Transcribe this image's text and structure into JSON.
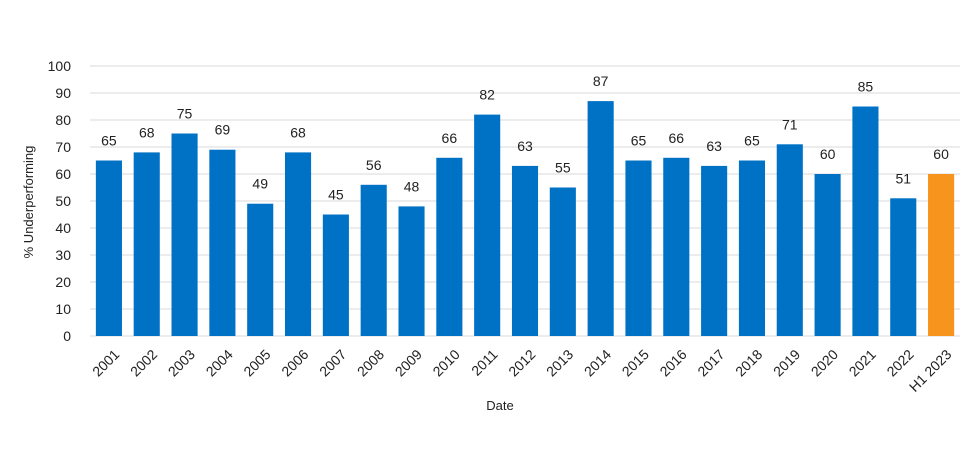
{
  "chart_data": {
    "type": "bar",
    "categories": [
      "2001",
      "2002",
      "2003",
      "2004",
      "2005",
      "2006",
      "2007",
      "2008",
      "2009",
      "2010",
      "2011",
      "2012",
      "2013",
      "2014",
      "2015",
      "2016",
      "2017",
      "2018",
      "2019",
      "2020",
      "2021",
      "2022",
      "H1 2023"
    ],
    "values": [
      65,
      68,
      75,
      69,
      49,
      68,
      45,
      56,
      48,
      66,
      82,
      63,
      55,
      87,
      65,
      66,
      63,
      65,
      71,
      60,
      85,
      51,
      60
    ],
    "xlabel": "Date",
    "ylabel": "% Underperforming",
    "ylim": [
      0,
      100
    ],
    "yticks": [
      0,
      10,
      20,
      30,
      40,
      50,
      60,
      70,
      80,
      90,
      100
    ],
    "grid": true,
    "colors": {
      "default_bar": "#0072C6",
      "highlight_bar": "#F7941D",
      "grid": "#d9d9d9"
    },
    "highlight_categories": [
      "H1 2023"
    ]
  }
}
